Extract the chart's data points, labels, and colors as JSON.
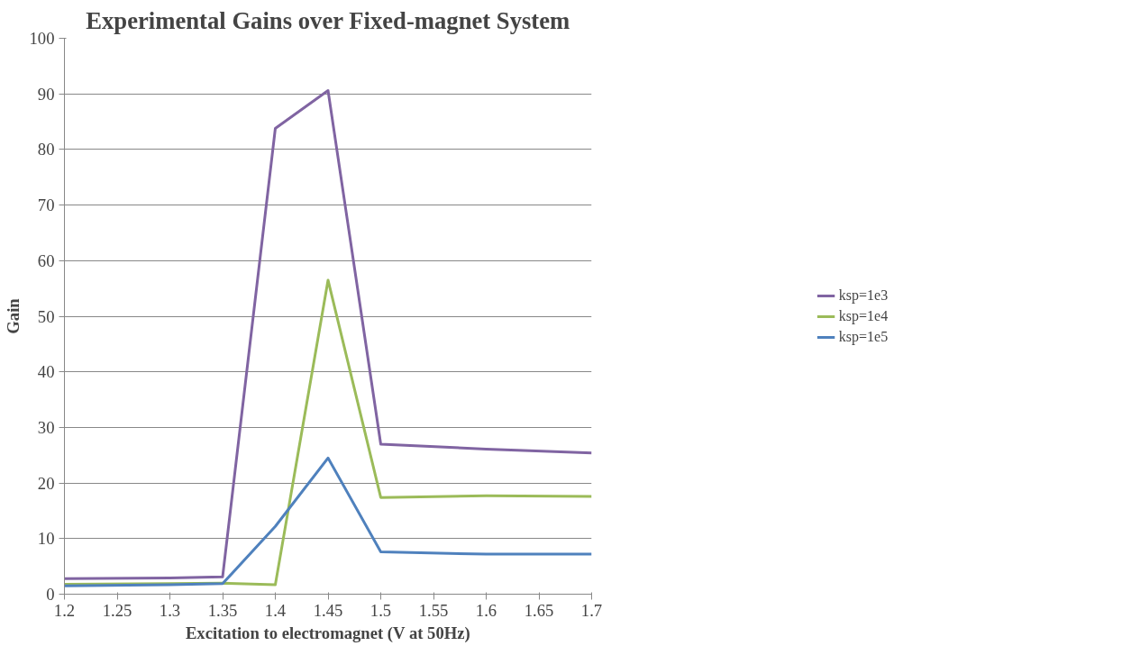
{
  "chart_data": {
    "type": "line",
    "title": "Experimental Gains over Fixed-magnet System",
    "xlabel": "Excitation to electromagnet (V at 50Hz)",
    "ylabel": "Gain",
    "x": [
      1.2,
      1.3,
      1.35,
      1.4,
      1.45,
      1.5,
      1.6,
      1.7
    ],
    "series": [
      {
        "name": "ksp=1e3",
        "color": "#8064a2",
        "values": [
          2.8,
          2.9,
          3.1,
          83.8,
          90.6,
          27.0,
          26.1,
          25.4
        ]
      },
      {
        "name": "ksp=1e4",
        "color": "#9bbb59",
        "values": [
          1.8,
          1.9,
          2.0,
          1.7,
          56.5,
          17.4,
          17.7,
          17.6
        ]
      },
      {
        "name": "ksp=1e5",
        "color": "#4f81bd",
        "values": [
          1.5,
          1.7,
          1.9,
          12.2,
          24.5,
          7.6,
          7.2,
          7.2
        ]
      }
    ],
    "xlim": [
      1.2,
      1.7
    ],
    "xticks": [
      1.2,
      1.25,
      1.3,
      1.35,
      1.4,
      1.45,
      1.5,
      1.55,
      1.6,
      1.65,
      1.7
    ],
    "ylim": [
      0,
      100
    ],
    "yticks": [
      0,
      10,
      20,
      30,
      40,
      50,
      60,
      70,
      80,
      90,
      100
    ],
    "grid": "y",
    "legend": "right",
    "marker": "none",
    "line_style": "solid"
  }
}
